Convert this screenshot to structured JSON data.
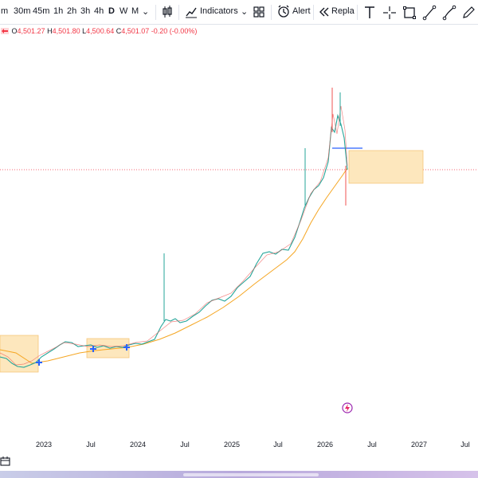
{
  "toolbar": {
    "timeframes": [
      "m",
      "30m",
      "45m",
      "1h",
      "2h",
      "3h",
      "4h",
      "D",
      "W",
      "M"
    ],
    "active_timeframe": "D",
    "indicators_label": "Indicators",
    "alert_label": "Alert",
    "replay_label": "Repla",
    "icons": [
      "candles-icon",
      "layout-grid-icon",
      "alert-clock-icon",
      "replay-icon",
      "text-tool-icon",
      "crosshair-icon",
      "rectangle-tool-icon",
      "trend-line-icon",
      "brush-icon",
      "pencil-icon"
    ]
  },
  "legend": {
    "open_label": "O",
    "open": "4,501.27",
    "high_label": "H",
    "high": "4,501.80",
    "low_label": "L",
    "low": "4,500.64",
    "close_label": "C",
    "close": "4,501.07",
    "change": "-0.20 (-0.00%)"
  },
  "xaxis": {
    "ticks": [
      "2023",
      "Jul",
      "2024",
      "Jul",
      "2025",
      "Jul",
      "2026",
      "Jul",
      "2027",
      "Jul"
    ]
  },
  "colors": {
    "up": "#26a69a",
    "down": "#ef5350",
    "ma": "#f5a623",
    "zone_fill": "#fde7bd",
    "zone_stroke": "#f5c77a",
    "marker": "#2962ff",
    "price_line": "#f23645"
  }
}
